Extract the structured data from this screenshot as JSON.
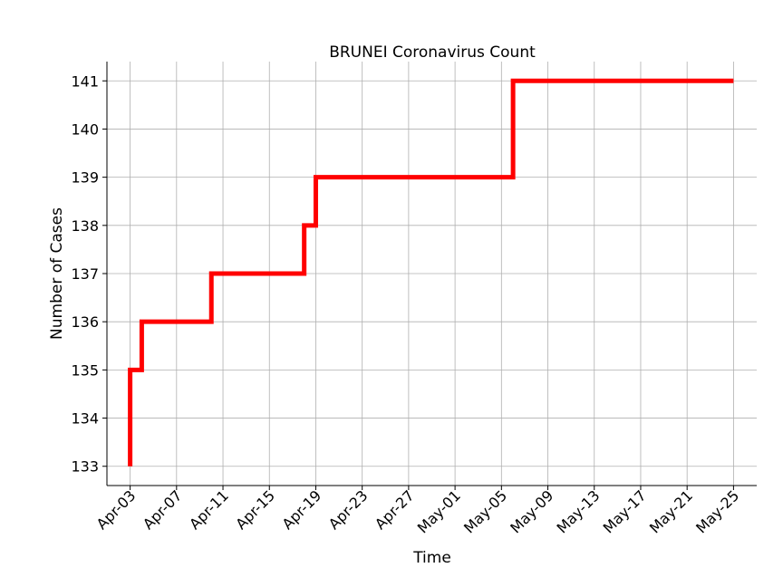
{
  "chart_data": {
    "type": "line",
    "title": "BRUNEI Coronavirus Count",
    "xlabel": "Time",
    "ylabel": "Number of Cases",
    "grid": true,
    "step": true,
    "x_tick_labels": [
      "Apr-03",
      "Apr-07",
      "Apr-11",
      "Apr-15",
      "Apr-19",
      "Apr-23",
      "Apr-27",
      "May-01",
      "May-05",
      "May-09",
      "May-13",
      "May-17",
      "May-21",
      "May-25"
    ],
    "y_ticks": [
      133,
      134,
      135,
      136,
      137,
      138,
      139,
      140,
      141
    ],
    "ylim": [
      132.6,
      141.4
    ],
    "xlim": [
      "2020-04-01",
      "2020-05-27"
    ],
    "series": [
      {
        "color": "#ff0000",
        "points": [
          {
            "x": "2020-04-03",
            "y": 133
          },
          {
            "x": "2020-04-03",
            "y": 134
          },
          {
            "x": "2020-04-04",
            "y": 135
          },
          {
            "x": "2020-04-10",
            "y": 136
          },
          {
            "x": "2020-04-18",
            "y": 137
          },
          {
            "x": "2020-04-19",
            "y": 138
          },
          {
            "x": "2020-05-06",
            "y": 139
          },
          {
            "x": "2020-05-07",
            "y": 141
          },
          {
            "x": "2020-05-25",
            "y": 141
          }
        ]
      }
    ]
  }
}
